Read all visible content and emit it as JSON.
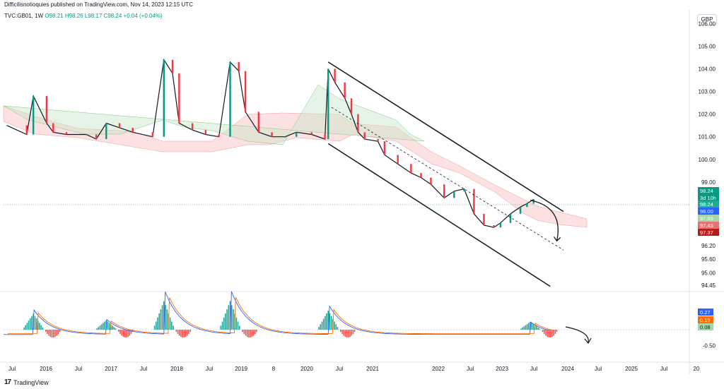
{
  "header": {
    "publisher": "Difficilisnotioquies published on TradingView.com, Nov 14, 2023 12:15 UTC",
    "symbol": "TVC:GB01, 1W",
    "ohlc": "O98.21  H98.26  L98.17  C98.24  +0.04 (+0.04%)",
    "currency": "GBP"
  },
  "footer": {
    "brand": "TradingView",
    "logo_glyph": "17"
  },
  "chart_data": [
    {
      "type": "line",
      "title": "",
      "series_description": "Weekly price (candles) with Ichimoku cloud and descending channel",
      "x_labels": [
        "Jul",
        "2016",
        "Jul",
        "2017",
        "Jul",
        "2018",
        "Jul",
        "2019",
        "8",
        "2020",
        "Jul",
        "2021",
        "2022",
        "Jul",
        "2023",
        "Jul",
        "2024",
        "Jul",
        "2025",
        "Jul",
        "20"
      ],
      "y_ticks": [
        "106.00",
        "105.00",
        "104.00",
        "103.00",
        "102.00",
        "101.00",
        "100.00",
        "99.00",
        "96.20",
        "95.60",
        "95.00",
        "94.45"
      ],
      "ylim": [
        94.2,
        106.6
      ],
      "price_tags": [
        {
          "label": "98.24",
          "color": "#089981"
        },
        {
          "label": "3d 10h",
          "color": "#089981"
        },
        {
          "label": "98.24",
          "color": "#22ab94"
        },
        {
          "label": "98.00",
          "color": "#2962ff"
        },
        {
          "label": "97.69",
          "color": "#a5d6a7"
        },
        {
          "label": "97.43",
          "color": "#e57373"
        },
        {
          "label": "97.37",
          "color": "#b71c1c"
        }
      ],
      "price": [
        [
          2015.6,
          101.5
        ],
        [
          2015.9,
          101.1
        ],
        [
          2016.0,
          102.8
        ],
        [
          2016.2,
          101.6
        ],
        [
          2016.3,
          101.2
        ],
        [
          2016.5,
          101.1
        ],
        [
          2016.8,
          101.1
        ],
        [
          2016.95,
          100.9
        ],
        [
          2017.1,
          101.6
        ],
        [
          2017.3,
          101.4
        ],
        [
          2017.5,
          101.2
        ],
        [
          2017.8,
          101.0
        ],
        [
          2017.97,
          104.4
        ],
        [
          2018.1,
          103.8
        ],
        [
          2018.2,
          101.6
        ],
        [
          2018.4,
          101.3
        ],
        [
          2018.6,
          101.1
        ],
        [
          2018.8,
          101.0
        ],
        [
          2018.97,
          104.3
        ],
        [
          2019.1,
          103.9
        ],
        [
          2019.2,
          102.1
        ],
        [
          2019.4,
          101.2
        ],
        [
          2019.6,
          101.0
        ],
        [
          2019.8,
          101.0
        ],
        [
          2019.97,
          101.2
        ],
        [
          2020.2,
          101.1
        ],
        [
          2020.4,
          100.9
        ],
        [
          2020.45,
          104.0
        ],
        [
          2020.55,
          103.4
        ],
        [
          2020.7,
          102.7
        ],
        [
          2020.8,
          102.0
        ],
        [
          2020.9,
          101.2
        ],
        [
          2021.0,
          100.9
        ],
        [
          2021.2,
          100.8
        ],
        [
          2021.3,
          100.2
        ],
        [
          2021.5,
          99.8
        ],
        [
          2021.7,
          99.4
        ],
        [
          2021.85,
          99.2
        ],
        [
          2022.0,
          98.9
        ],
        [
          2022.2,
          98.3
        ],
        [
          2022.35,
          98.6
        ],
        [
          2022.5,
          98.7
        ],
        [
          2022.65,
          97.6
        ],
        [
          2022.8,
          97.1
        ],
        [
          2022.95,
          97.0
        ],
        [
          2023.05,
          97.2
        ],
        [
          2023.2,
          97.6
        ],
        [
          2023.35,
          97.9
        ],
        [
          2023.45,
          98.05
        ],
        [
          2023.55,
          98.24
        ]
      ],
      "channel_upper": [
        [
          2020.45,
          104.3
        ],
        [
          2024.0,
          97.7
        ]
      ],
      "channel_lower": [
        [
          2020.45,
          100.7
        ],
        [
          2023.8,
          94.4
        ]
      ],
      "channel_mid_dashed": [
        [
          2020.5,
          102.3
        ],
        [
          2024.0,
          96.0
        ]
      ],
      "projection_arrow": [
        [
          2023.5,
          98.2
        ],
        [
          2023.9,
          96.4
        ]
      ]
    },
    {
      "type": "bar",
      "title": "",
      "y_ticks": [
        "-0.50"
      ],
      "tags": [
        {
          "label": "0.27",
          "color": "#2962ff"
        },
        {
          "label": "0.19",
          "color": "#ff6d00"
        },
        {
          "label": "0.08",
          "color": "#a5d6a7"
        }
      ],
      "histogram_peaks": [
        {
          "x": 2016.0,
          "value": 0.5
        },
        {
          "x": 2017.1,
          "value": 0.3
        },
        {
          "x": 2017.97,
          "value": 0.9
        },
        {
          "x": 2018.97,
          "value": 0.9
        },
        {
          "x": 2020.45,
          "value": 0.6
        },
        {
          "x": 2023.5,
          "value": 0.25
        }
      ]
    }
  ]
}
